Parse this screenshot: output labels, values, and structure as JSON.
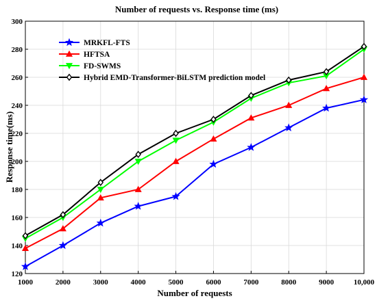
{
  "chart_data": {
    "type": "line",
    "title": "Number of requests vs. Response time (ms)",
    "xlabel": "Number of requests",
    "ylabel": "Response time(ms)",
    "categories": [
      "1000",
      "2000",
      "3000",
      "4000",
      "5000",
      "6000",
      "7000",
      "8000",
      "9000",
      "10,000"
    ],
    "yticks": [
      "120",
      "140",
      "160",
      "180",
      "200",
      "220",
      "240",
      "260",
      "280",
      "300"
    ],
    "ylim": [
      120,
      300
    ],
    "grid": true,
    "legend_position": "top-left",
    "series": [
      {
        "name": "MRKFL-FTS",
        "color": "#0000ff",
        "marker": "star",
        "values": [
          125,
          140,
          156,
          168,
          175,
          198,
          210,
          224,
          238,
          244
        ]
      },
      {
        "name": "HFTSA",
        "color": "#ff0000",
        "marker": "triangle",
        "values": [
          138,
          152,
          174,
          180,
          200,
          216,
          231,
          240,
          252,
          260
        ]
      },
      {
        "name": "FD-SWMS",
        "color": "#00ff00",
        "marker": "triangle-down",
        "values": [
          145,
          160,
          180,
          200,
          215,
          228,
          245,
          256,
          261,
          280
        ]
      },
      {
        "name": "Hybrid EMD-Transformer-BiLSTM prediction model",
        "color": "#000000",
        "marker": "diamond",
        "values": [
          147,
          162,
          185,
          205,
          220,
          230,
          247,
          258,
          264,
          282
        ]
      }
    ]
  }
}
